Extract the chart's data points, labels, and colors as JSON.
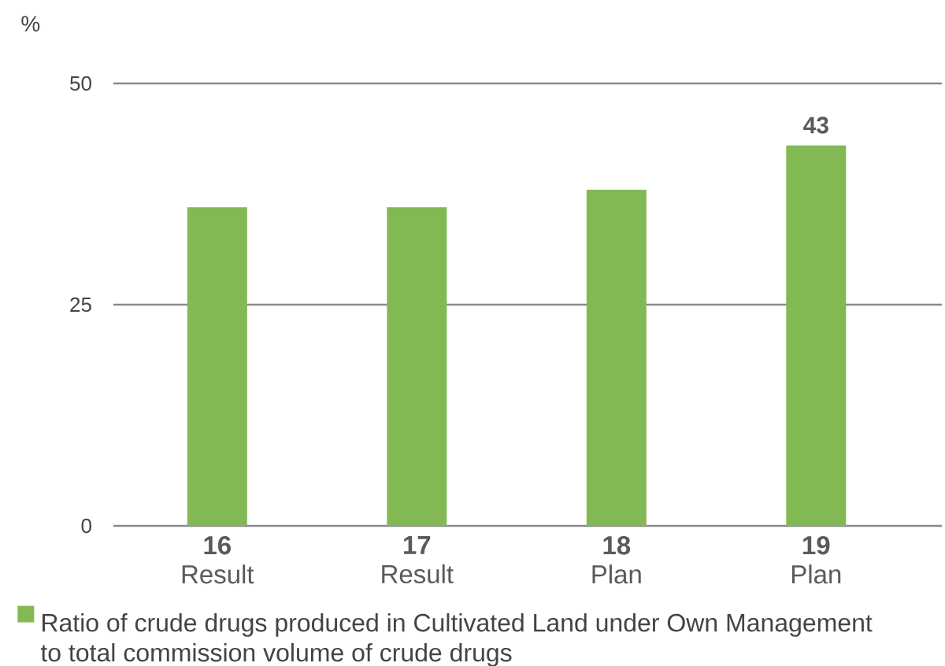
{
  "chart_data": {
    "type": "bar",
    "ylabel": "%",
    "categories": [
      "**16** Result",
      "**17** Result",
      "**18** Plan",
      "**19** Plan"
    ],
    "series": [
      {
        "name": "Ratio of crude drugs produced in Cultivated Land under Own Management to total commission volume of crude drugs",
        "color": "#83b953",
        "values": [
          36,
          36,
          38,
          43
        ],
        "value_labels": [
          null,
          null,
          null,
          "43"
        ]
      }
    ],
    "ylim": [
      0,
      50
    ],
    "yticks": [
      0,
      25,
      50
    ],
    "grid": "y",
    "legend": "bottom"
  }
}
